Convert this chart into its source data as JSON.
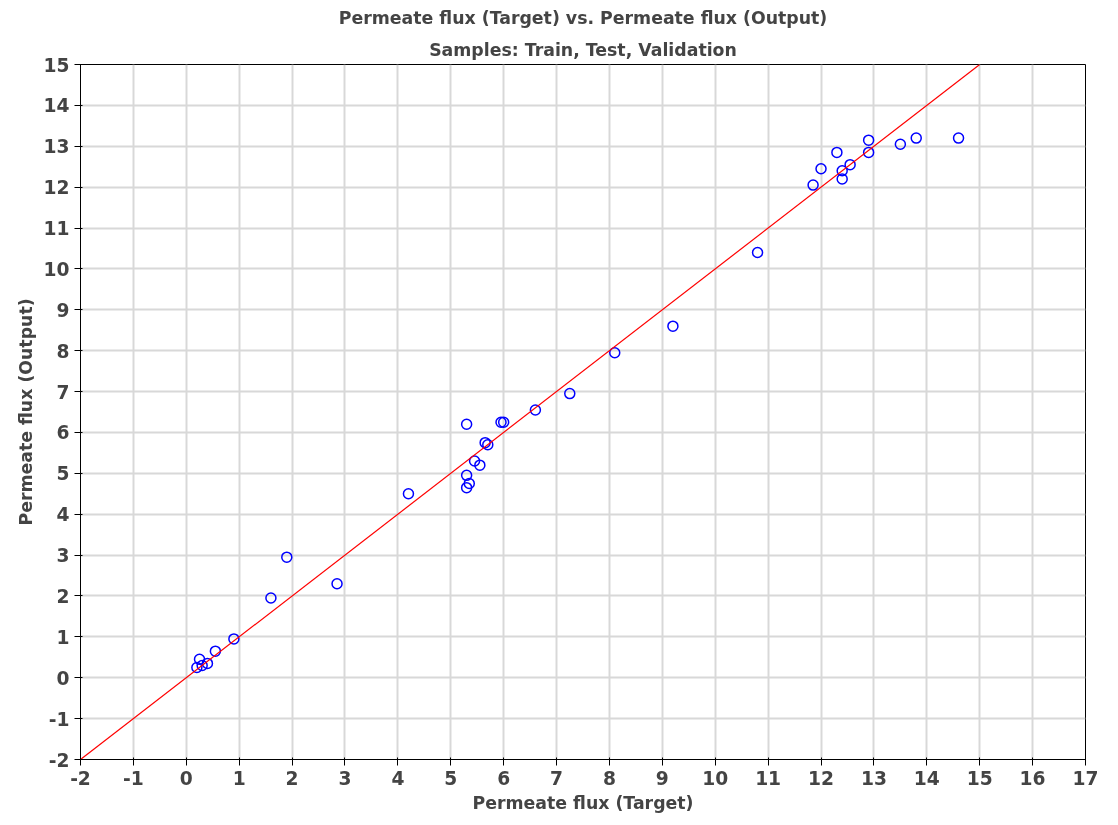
{
  "chart_data": {
    "type": "scatter",
    "title": "Permeate flux (Target) vs. Permeate flux (Output)",
    "subtitle": "Samples: Train, Test, Validation",
    "xlabel": "Permeate flux (Target)",
    "ylabel": "Permeate flux (Output)",
    "xlim": [
      -2,
      17
    ],
    "ylim": [
      -2,
      15
    ],
    "xticks": [
      -2,
      -1,
      0,
      1,
      2,
      3,
      4,
      5,
      6,
      7,
      8,
      9,
      10,
      11,
      12,
      13,
      14,
      15,
      16,
      17
    ],
    "yticks": [
      -2,
      -1,
      0,
      1,
      2,
      3,
      4,
      5,
      6,
      7,
      8,
      9,
      10,
      11,
      12,
      13,
      14,
      15
    ],
    "grid": true,
    "series": [
      {
        "color": "#0000ff",
        "marker": "circle",
        "x": [
          0.2,
          0.25,
          0.3,
          0.4,
          0.55,
          0.9,
          1.6,
          1.9,
          2.85,
          4.2,
          5.3,
          5.3,
          5.3,
          5.35,
          5.45,
          5.55,
          5.65,
          5.7,
          5.95,
          6.0,
          6.6,
          7.25,
          8.1,
          9.2,
          10.8,
          11.85,
          12.0,
          12.3,
          12.4,
          12.4,
          12.55,
          12.9,
          12.9,
          13.5,
          13.8,
          14.6
        ],
        "values": [
          0.25,
          0.45,
          0.3,
          0.35,
          0.65,
          0.95,
          1.95,
          2.95,
          2.3,
          4.5,
          6.2,
          4.95,
          4.65,
          4.75,
          5.3,
          5.2,
          5.75,
          5.7,
          6.25,
          6.25,
          6.55,
          6.95,
          7.95,
          8.6,
          10.4,
          12.05,
          12.45,
          12.85,
          12.4,
          12.2,
          12.55,
          13.15,
          12.85,
          13.05,
          13.2,
          13.2
        ]
      },
      {
        "type": "line",
        "color": "#ff0000",
        "line_style": "solid",
        "x": [
          -2,
          15
        ],
        "values": [
          -2,
          15
        ]
      }
    ]
  }
}
